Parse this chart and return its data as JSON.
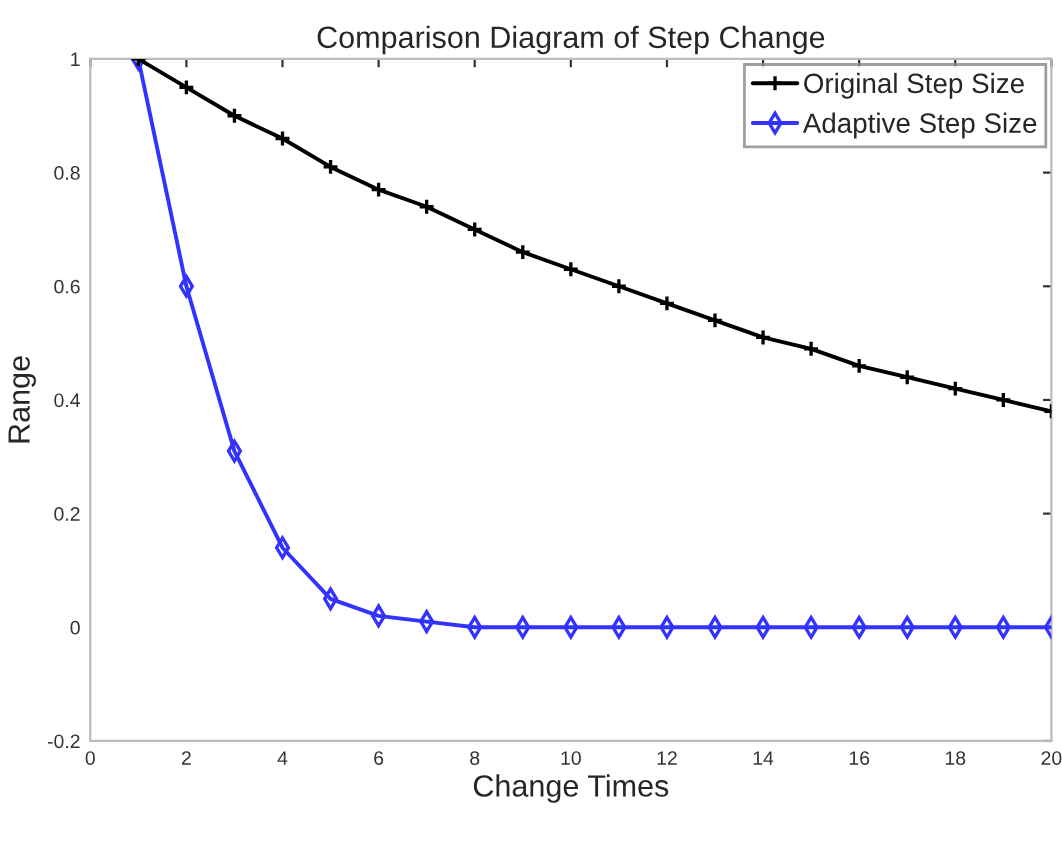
{
  "chart_data": {
    "type": "line",
    "title": "Comparison Diagram of Step Change",
    "xlabel": "Change Times",
    "ylabel": "Range",
    "x": [
      1,
      2,
      3,
      4,
      5,
      6,
      7,
      8,
      9,
      10,
      11,
      12,
      13,
      14,
      15,
      16,
      17,
      18,
      19,
      20
    ],
    "series": [
      {
        "name": "Original Step Size",
        "color": "#000000",
        "marker": "cross",
        "values": [
          1,
          0.95,
          0.9,
          0.86,
          0.81,
          0.77,
          0.74,
          0.7,
          0.66,
          0.63,
          0.6,
          0.57,
          0.54,
          0.51,
          0.49,
          0.46,
          0.44,
          0.42,
          0.4,
          0.38
        ]
      },
      {
        "name": "Adaptive Step Size",
        "color": "#3333ff",
        "marker": "diamond",
        "values": [
          1,
          0.6,
          0.31,
          0.14,
          0.05,
          0.02,
          0.01,
          0,
          0,
          0,
          0,
          0,
          0,
          0,
          0,
          0,
          0,
          0,
          0,
          0
        ]
      }
    ],
    "xlim": [
      0,
      20
    ],
    "xticks": [
      0,
      2,
      4,
      6,
      8,
      10,
      12,
      14,
      16,
      18,
      20
    ],
    "ylim": [
      -0.2,
      1
    ],
    "yticks": [
      -0.2,
      0,
      0.2,
      0.4,
      0.6,
      0.8,
      1
    ],
    "grid": false,
    "legend": "top right",
    "line_style": "solid"
  }
}
